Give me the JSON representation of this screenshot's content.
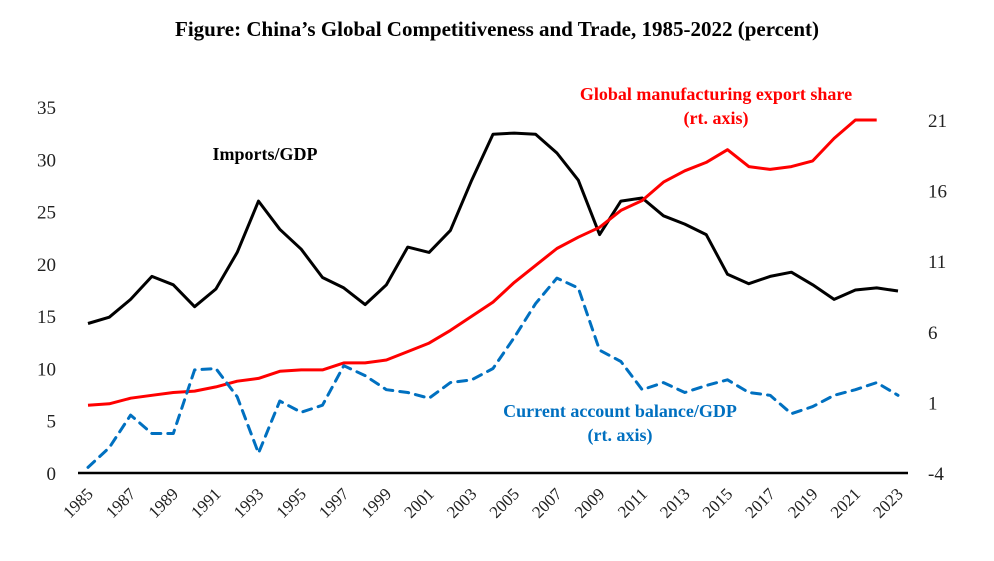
{
  "chart_data": {
    "type": "line",
    "title": "Figure: China’s Global Competitiveness and Trade, 1985-2022 (percent)",
    "xlabel": "",
    "ylabel": "",
    "ylabel_right": "",
    "grid": false,
    "legend": "inline annotations",
    "x": [
      1985,
      1986,
      1987,
      1988,
      1989,
      1990,
      1991,
      1992,
      1993,
      1994,
      1995,
      1996,
      1997,
      1998,
      1999,
      2000,
      2001,
      2002,
      2003,
      2004,
      2005,
      2006,
      2007,
      2008,
      2009,
      2010,
      2011,
      2012,
      2013,
      2014,
      2015,
      2016,
      2017,
      2018,
      2019,
      2020,
      2021,
      2022,
      2023
    ],
    "x_tick_labels": [
      "1985",
      "1987",
      "1989",
      "1991",
      "1993",
      "1995",
      "1997",
      "1999",
      "2001",
      "2003",
      "2005",
      "2007",
      "2009",
      "2011",
      "2013",
      "2015",
      "2017",
      "2019",
      "2021",
      "2023"
    ],
    "ylim": [
      0,
      35
    ],
    "y_ticks": [
      "0",
      "5",
      "10",
      "15",
      "20",
      "25",
      "30",
      "35"
    ],
    "ylim_right": [
      -4,
      21
    ],
    "y_ticks_right": [
      "-4",
      "1",
      "6",
      "11",
      "16",
      "21"
    ],
    "series": [
      {
        "name": "Imports/GDP",
        "label": "Imports/GDP",
        "axis": "left",
        "color": "#000000",
        "dash": "solid",
        "values": [
          14.3,
          14.9,
          16.6,
          18.8,
          18.0,
          15.9,
          17.6,
          21.1,
          26.0,
          23.3,
          21.4,
          18.7,
          17.7,
          16.1,
          18.0,
          21.6,
          21.1,
          23.2,
          28.0,
          32.4,
          32.5,
          32.4,
          30.6,
          28.0,
          22.8,
          26.0,
          26.3,
          24.6,
          23.8,
          22.8,
          19.0,
          18.1,
          18.8,
          19.2,
          18.0,
          16.6,
          17.5,
          17.7,
          17.4
        ]
      },
      {
        "name": "Global manufacturing export share",
        "label": "Global manufacturing export share",
        "label2": "(rt. axis)",
        "axis": "right",
        "color": "#ff0000",
        "dash": "solid",
        "values": [
          0.8,
          0.9,
          1.3,
          1.5,
          1.7,
          1.8,
          2.1,
          2.5,
          2.7,
          3.2,
          3.3,
          3.3,
          3.8,
          3.8,
          4.0,
          4.6,
          5.2,
          6.1,
          7.1,
          8.1,
          9.5,
          10.7,
          11.9,
          12.7,
          13.4,
          14.6,
          15.3,
          16.6,
          17.4,
          18.0,
          18.9,
          17.7,
          17.5,
          17.7,
          18.1,
          19.7,
          21.0,
          21.0,
          null
        ]
      },
      {
        "name": "Current account balance/GDP",
        "label": "Current account balance/GDP",
        "label2": "(rt. axis)",
        "axis": "right",
        "color": "#0070c0",
        "dash": "dashed",
        "values": [
          -3.6,
          -2.2,
          0.1,
          -1.2,
          -1.2,
          3.3,
          3.4,
          1.4,
          -2.6,
          1.1,
          0.3,
          0.8,
          3.6,
          2.9,
          1.9,
          1.7,
          1.3,
          2.4,
          2.6,
          3.4,
          5.6,
          8.0,
          9.8,
          9.1,
          4.7,
          3.9,
          1.9,
          2.4,
          1.7,
          2.2,
          2.6,
          1.7,
          1.5,
          0.2,
          0.7,
          1.5,
          1.9,
          2.4,
          1.5
        ]
      }
    ]
  }
}
